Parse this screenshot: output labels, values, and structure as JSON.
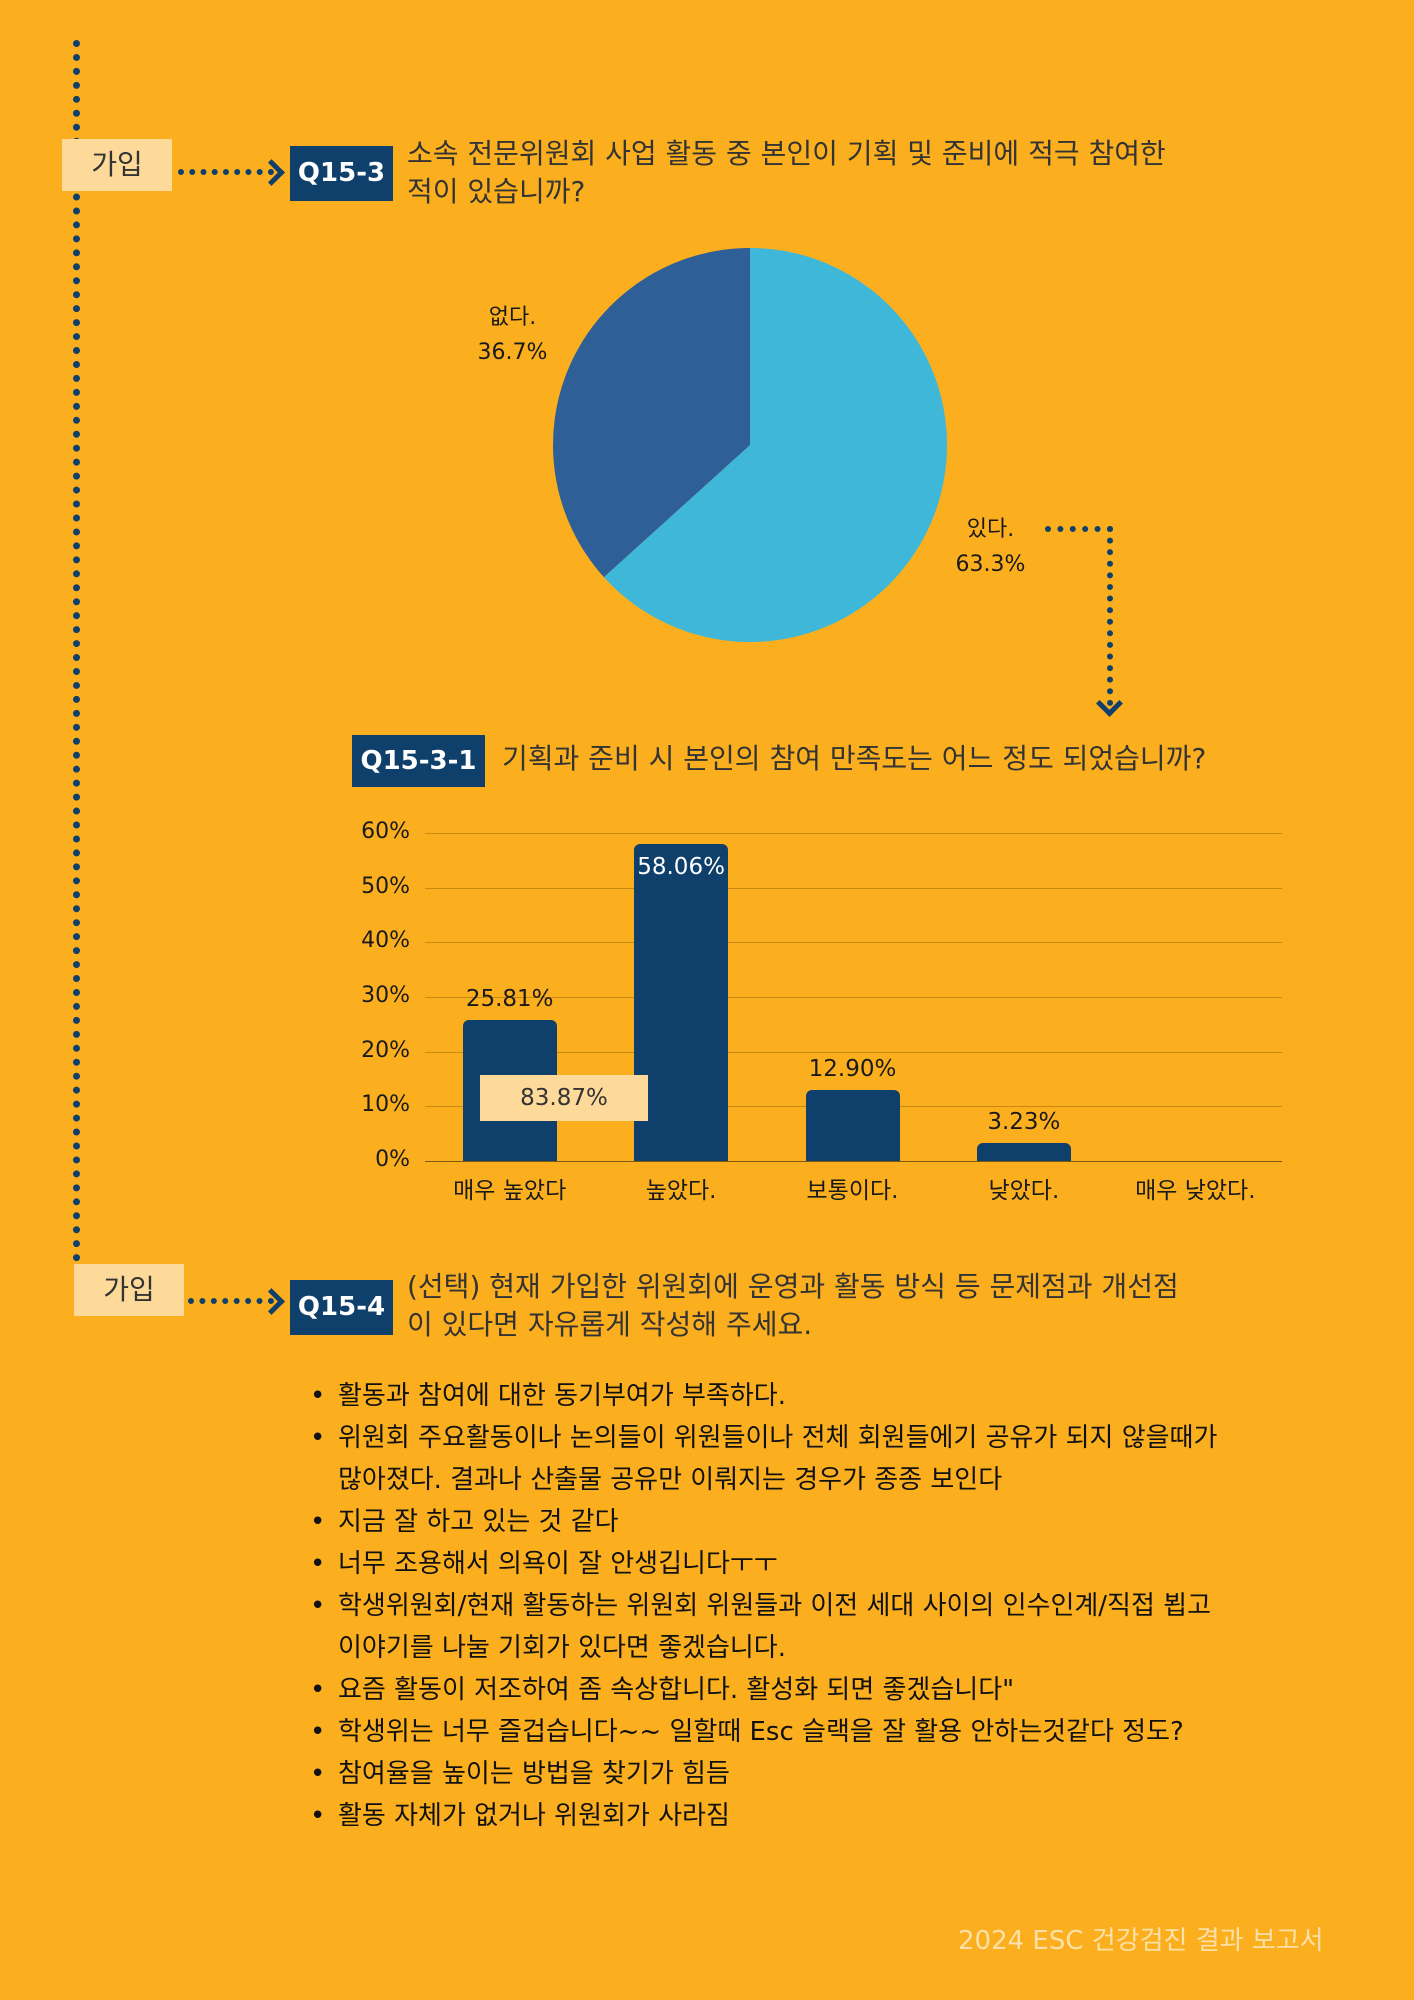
{
  "tags": {
    "join_1": "가입",
    "join_2": "가입"
  },
  "q15_3": {
    "badge": "Q15-3",
    "text_line1": "소속 전문위원회 사업 활동 중 본인이 기획 및 준비에 적극 참여한",
    "text_line2": "적이 있습니까?"
  },
  "q15_3_1": {
    "badge": "Q15-3-1",
    "text": "기획과 준비 시 본인의 참여 만족도는 어느 정도 되었습니까?"
  },
  "q15_4": {
    "badge": "Q15-4",
    "text_line1": "(선택) 현재 가입한 위원회에 운영과 활동 방식 등 문제점과 개선점",
    "text_line2": "이 있다면 자유롭게 작성해 주세요."
  },
  "answers": [
    "활동과 참여에 대한 동기부여가 부족하다.",
    "위원회 주요활동이나 논의들이 위원들이나 전체 회원들에기 공유가 되지 않을때가",
    "많아졌다. 결과나 산출물 공유만 이뤄지는 경우가 종종 보인다",
    "지금 잘 하고 있는 것 같다",
    "너무 조용해서 의욕이 잘 안생깁니다ㅜㅜ",
    "학생위원회/현재 활동하는 위원회 위원들과 이전 세대 사이의 인수인계/직접 뵙고",
    "이야기를 나눌 기회가 있다면 좋겠습니다.",
    "요즘 활동이 저조하여 좀 속상합니다. 활성화 되면 좋겠습니다\"",
    "학생위는 너무 즐겁습니다~~ 일할때 Esc 슬랙을 잘 활용 안하는것같다 정도?",
    "참여율을 높이는 방법을 찾기가 힘듬",
    "활동 자체가 없거나 위원회가 사라짐"
  ],
  "footer": "2024 ESC 건강검진 결과 보고서",
  "colors": {
    "background": "#FBAF1E",
    "navy": "#0F3F6B",
    "pie_yes": "#3FB7D8",
    "pie_no": "#2E5F97",
    "tag_bg": "#FDD99A"
  },
  "chart_data": [
    {
      "type": "pie",
      "slices": [
        {
          "label": "있다.",
          "value": 63.3,
          "display": "63.3%",
          "color": "#3FB7D8"
        },
        {
          "label": "없다.",
          "value": 36.7,
          "display": "36.7%",
          "color": "#2E5F97"
        }
      ]
    },
    {
      "type": "bar",
      "categories": [
        "매우 높았다",
        "높았다.",
        "보통이다.",
        "낮았다.",
        "매우 낮았다."
      ],
      "values": [
        25.81,
        58.06,
        12.9,
        3.23,
        0
      ],
      "value_labels": [
        "25.81%",
        "58.06%",
        "12.90%",
        "3.23%",
        ""
      ],
      "y_ticks": [
        "0%",
        "10%",
        "20%",
        "30%",
        "40%",
        "50%",
        "60%"
      ],
      "ylim": [
        0,
        60
      ],
      "grid": true,
      "annotation": "83.87%"
    }
  ]
}
